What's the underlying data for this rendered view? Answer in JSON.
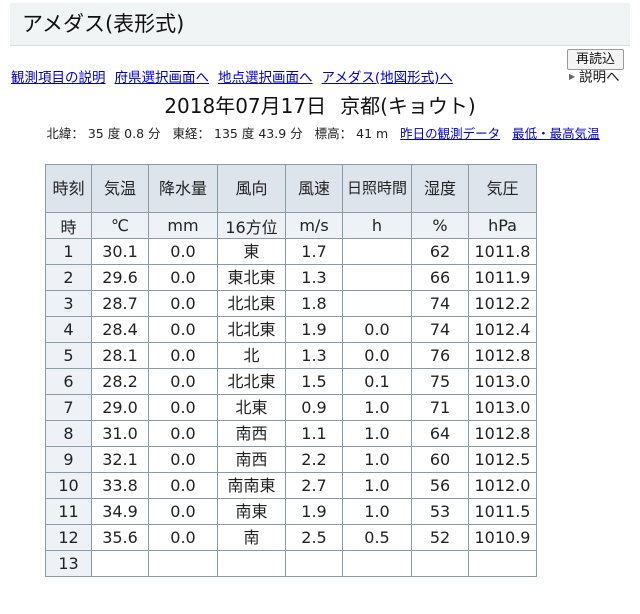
{
  "header": {
    "title": "アメダス(表形式)"
  },
  "toolbar": {
    "reload_label": "再読込",
    "explain_label": "説明へ"
  },
  "nav": {
    "links": [
      "観測項目の説明",
      "府県選択画面へ",
      "地点選択画面へ",
      "アメダス(地図形式)へ"
    ]
  },
  "heading": {
    "date": "2018年07月17日",
    "place": "京都(キョウト)"
  },
  "station": {
    "lat_label": "北緯：",
    "lat_value": "35 度 0.8 分",
    "lon_label": "東経：",
    "lon_value": "135 度 43.9 分",
    "alt_label": "標高：",
    "alt_value": "41 m",
    "yesterday_link": "昨日の観測データ",
    "maxmin_link": "最低・最高気温"
  },
  "table": {
    "headers": [
      "時刻",
      "気温",
      "降水量",
      "風向",
      "風速",
      "日照時間",
      "湿度",
      "気圧"
    ],
    "units": [
      "時",
      "℃",
      "mm",
      "16方位",
      "m/s",
      "h",
      "%",
      "hPa"
    ],
    "rows": [
      [
        "1",
        "30.1",
        "0.0",
        "東",
        "1.7",
        "",
        "62",
        "1011.8"
      ],
      [
        "2",
        "29.6",
        "0.0",
        "東北東",
        "1.3",
        "",
        "66",
        "1011.9"
      ],
      [
        "3",
        "28.7",
        "0.0",
        "北北東",
        "1.8",
        "",
        "74",
        "1012.2"
      ],
      [
        "4",
        "28.4",
        "0.0",
        "北北東",
        "1.9",
        "0.0",
        "74",
        "1012.4"
      ],
      [
        "5",
        "28.1",
        "0.0",
        "北",
        "1.3",
        "0.0",
        "76",
        "1012.8"
      ],
      [
        "6",
        "28.2",
        "0.0",
        "北北東",
        "1.5",
        "0.1",
        "75",
        "1013.0"
      ],
      [
        "7",
        "29.0",
        "0.0",
        "北東",
        "0.9",
        "1.0",
        "71",
        "1013.0"
      ],
      [
        "8",
        "31.0",
        "0.0",
        "南西",
        "1.1",
        "1.0",
        "64",
        "1012.8"
      ],
      [
        "9",
        "32.1",
        "0.0",
        "南西",
        "2.2",
        "1.0",
        "60",
        "1012.5"
      ],
      [
        "10",
        "33.8",
        "0.0",
        "南南東",
        "2.7",
        "1.0",
        "56",
        "1012.0"
      ],
      [
        "11",
        "34.9",
        "0.0",
        "南東",
        "1.9",
        "1.0",
        "53",
        "1011.5"
      ],
      [
        "12",
        "35.6",
        "0.0",
        "南",
        "2.5",
        "0.5",
        "52",
        "1010.9"
      ],
      [
        "13",
        "",
        "",
        "",
        "",
        "",
        "",
        ""
      ]
    ]
  }
}
